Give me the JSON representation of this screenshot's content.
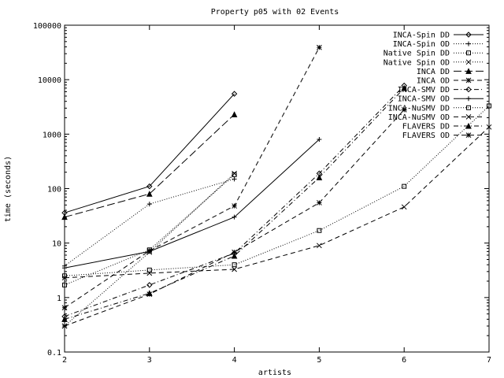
{
  "chart_data": {
    "type": "line",
    "title": "Property p05 with 02 Events",
    "xlabel": "artists",
    "ylabel": "time (seconds)",
    "x_scale": "linear",
    "y_scale": "log",
    "xlim": [
      2,
      7
    ],
    "ylim": [
      0.1,
      100000
    ],
    "x_ticks": [
      "2",
      "3",
      "4",
      "5",
      "6",
      "7"
    ],
    "y_ticks": [
      "0.1",
      "1",
      "10",
      "100",
      "1000",
      "10000",
      "100000"
    ],
    "grid": false,
    "legend_position": "top-right",
    "series": [
      {
        "name": "INCA-Spin DD",
        "marker": "diamond",
        "dash": "solid",
        "points": [
          [
            2,
            36
          ],
          [
            3,
            110
          ],
          [
            4,
            5500
          ]
        ]
      },
      {
        "name": "INCA-Spin OD",
        "marker": "plus",
        "dash": "dotted",
        "points": [
          [
            2,
            3.8
          ],
          [
            3,
            52
          ],
          [
            4,
            150
          ]
        ]
      },
      {
        "name": "Native Spin DD",
        "marker": "square",
        "dash": "dotted",
        "points": [
          [
            2,
            1.7
          ],
          [
            3,
            7.5
          ],
          [
            4,
            180
          ]
        ]
      },
      {
        "name": "Native Spin OD",
        "marker": "cross",
        "dash": "dotted",
        "points": [
          [
            2,
            0.3
          ],
          [
            3,
            6.8
          ],
          [
            4,
            190
          ]
        ]
      },
      {
        "name": "INCA DD",
        "marker": "triangle",
        "dash": "longdash",
        "points": [
          [
            2,
            30
          ],
          [
            3,
            80
          ],
          [
            4,
            2300
          ]
        ]
      },
      {
        "name": "INCA OD",
        "marker": "star",
        "dash": "dashed",
        "points": [
          [
            2,
            0.65
          ],
          [
            3,
            7.2
          ],
          [
            4,
            48
          ],
          [
            5,
            39000
          ]
        ]
      },
      {
        "name": "INCA-SMV DD",
        "marker": "diamond",
        "dash": "dashdot",
        "points": [
          [
            2,
            0.45
          ],
          [
            3,
            1.7
          ],
          [
            4,
            6.5
          ],
          [
            5,
            190
          ],
          [
            6,
            7800
          ]
        ]
      },
      {
        "name": "INCA-SMV OD",
        "marker": "plus",
        "dash": "solid",
        "points": [
          [
            2,
            3.5
          ],
          [
            3,
            7
          ],
          [
            4,
            30
          ],
          [
            5,
            800
          ]
        ]
      },
      {
        "name": "INCA-NuSMV DD",
        "marker": "square",
        "dash": "dotted",
        "points": [
          [
            2,
            2.5
          ],
          [
            3,
            3.2
          ],
          [
            4,
            4
          ],
          [
            5,
            17
          ],
          [
            6,
            110
          ],
          [
            7,
            3300
          ]
        ]
      },
      {
        "name": "INCA-NuSMV OD",
        "marker": "cross",
        "dash": "dashed",
        "points": [
          [
            2,
            2.3
          ],
          [
            3,
            2.8
          ],
          [
            4,
            3.3
          ],
          [
            5,
            9
          ],
          [
            6,
            46
          ],
          [
            7,
            1350
          ]
        ]
      },
      {
        "name": "FLAVERS DD",
        "marker": "triangle",
        "dash": "dashdot",
        "points": [
          [
            2,
            0.4
          ],
          [
            3,
            1.2
          ],
          [
            4,
            5.8
          ],
          [
            5,
            160
          ],
          [
            6,
            7000
          ]
        ]
      },
      {
        "name": "FLAVERS OD",
        "marker": "star",
        "dash": "dashed",
        "points": [
          [
            2,
            0.3
          ],
          [
            3,
            1.15
          ],
          [
            4,
            6.8
          ],
          [
            5,
            55
          ],
          [
            6,
            2800
          ]
        ]
      }
    ]
  }
}
